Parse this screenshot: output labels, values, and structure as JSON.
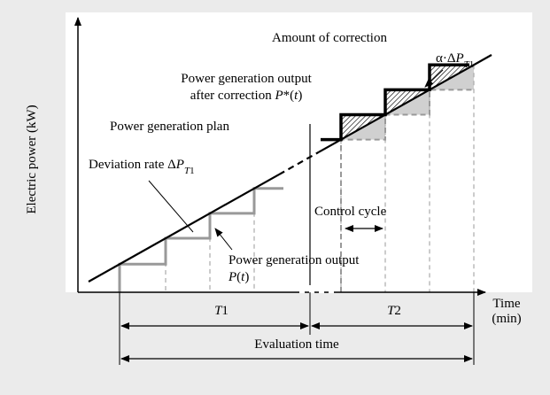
{
  "labels": [
    {
      "lines": [
        [
          {
            "t": "Amount of correction"
          }
        ]
      ]
    },
    {
      "lines": [
        [
          {
            "t": "α·Δ"
          },
          {
            "t": "P",
            "i": true
          },
          {
            "t": "T",
            "i": true,
            "sub": true
          },
          {
            "t": "1",
            "sub": true
          }
        ]
      ]
    },
    {
      "lines": [
        [
          {
            "t": "Power generation output"
          }
        ],
        [
          {
            "t": "after correction "
          },
          {
            "t": "P",
            "i": true
          },
          {
            "t": "*("
          },
          {
            "t": "t",
            "i": true
          },
          {
            "t": ")"
          }
        ]
      ]
    },
    {
      "lines": [
        [
          {
            "t": "Power generation plan"
          }
        ]
      ]
    },
    {
      "lines": [
        [
          {
            "t": "Deviation rate Δ"
          },
          {
            "t": "P",
            "i": true
          },
          {
            "t": "T",
            "i": true,
            "sub": true
          },
          {
            "t": "1",
            "sub": true
          }
        ]
      ]
    },
    {
      "lines": [
        [
          {
            "t": "Control cycle"
          }
        ]
      ]
    },
    {
      "lines": [
        [
          {
            "t": "Power generation output"
          }
        ],
        [
          {
            "t": "P",
            "i": true
          },
          {
            "t": "("
          },
          {
            "t": "t",
            "i": true
          },
          {
            "t": ")"
          }
        ]
      ]
    },
    {
      "lines": [
        [
          {
            "t": "Electric power (kW)"
          }
        ]
      ]
    },
    {
      "lines": [
        [
          {
            "t": "T",
            "i": true
          },
          {
            "t": "1"
          }
        ]
      ]
    },
    {
      "lines": [
        [
          {
            "t": "T",
            "i": true
          },
          {
            "t": "2"
          }
        ]
      ]
    },
    {
      "lines": [
        [
          {
            "t": "Evaluation time"
          }
        ]
      ]
    },
    {
      "lines": [
        [
          {
            "t": "Time"
          }
        ],
        [
          {
            "t": "(min)"
          }
        ]
      ]
    }
  ]
}
